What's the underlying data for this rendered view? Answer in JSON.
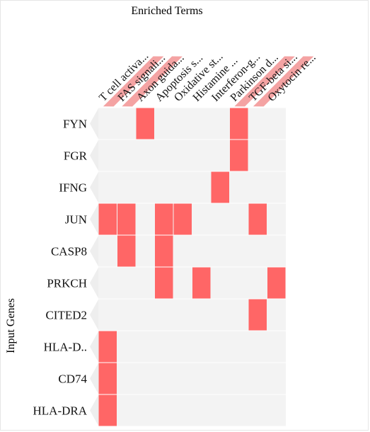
{
  "chart_data": {
    "type": "heatmap",
    "title": "Enriched Terms",
    "ylabel": "Input Genes",
    "columns": [
      "T cell activa...",
      "FAS signali...",
      "Axon guida...",
      "Apoptosis s...",
      "Oxidative st...",
      "Histamine ...",
      "Interferon-g...",
      "Parkinson d...",
      "TGF-beta si...",
      "Oxytocin re..."
    ],
    "rows": [
      "FYN",
      "FGR",
      "IFNG",
      "JUN",
      "CASP8",
      "PRKCH",
      "CITED2",
      "HLA-D..",
      "CD74",
      "HLA-DRA"
    ],
    "matrix": [
      [
        0,
        0,
        1,
        0,
        0,
        0,
        0,
        1,
        0,
        0
      ],
      [
        0,
        0,
        0,
        0,
        0,
        0,
        0,
        1,
        0,
        0
      ],
      [
        0,
        0,
        0,
        0,
        0,
        0,
        1,
        0,
        0,
        0
      ],
      [
        1,
        1,
        0,
        1,
        1,
        0,
        0,
        0,
        1,
        0
      ],
      [
        0,
        1,
        0,
        1,
        0,
        0,
        0,
        0,
        0,
        0
      ],
      [
        0,
        0,
        0,
        1,
        0,
        1,
        0,
        0,
        0,
        1
      ],
      [
        0,
        0,
        0,
        0,
        0,
        0,
        0,
        0,
        1,
        0
      ],
      [
        1,
        0,
        0,
        0,
        0,
        0,
        0,
        0,
        0,
        0
      ],
      [
        1,
        0,
        0,
        0,
        0,
        0,
        0,
        0,
        0,
        0
      ],
      [
        1,
        0,
        0,
        0,
        0,
        0,
        0,
        0,
        0,
        0
      ]
    ],
    "highlighted_columns": [
      0,
      1,
      7,
      8
    ],
    "colors": {
      "cell_on": "#ff6666",
      "cell_off": "#f5f5f5",
      "row_band": "#f3f3f3",
      "column_highlight": "#f4a3a3",
      "label_tab": "#eeeeee",
      "text": "#111111"
    }
  }
}
